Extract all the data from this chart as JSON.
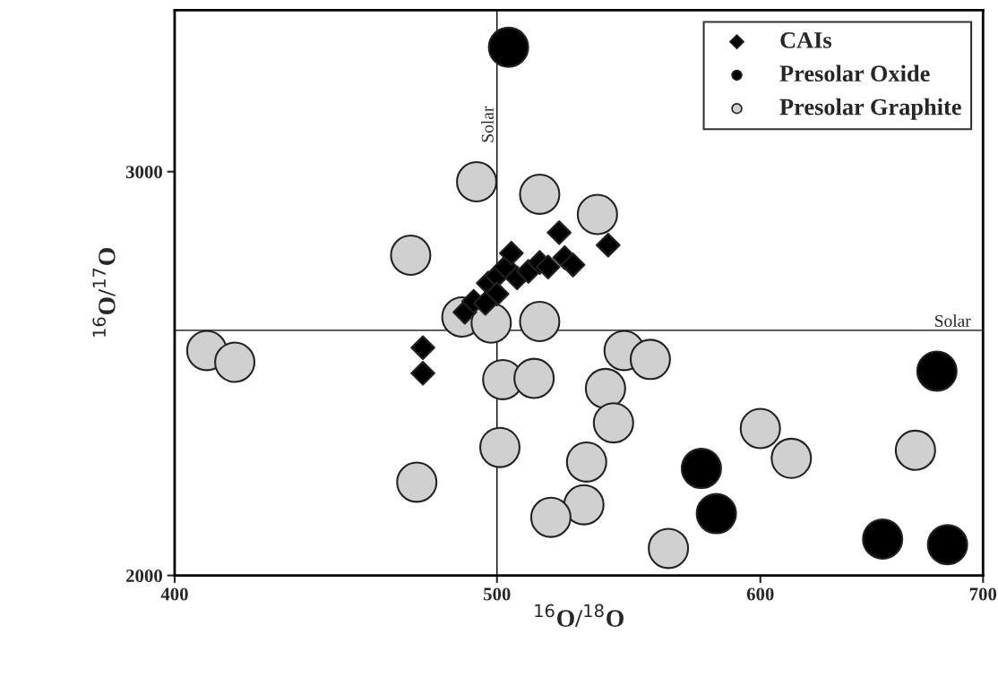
{
  "chart_data": {
    "type": "scatter",
    "xlabel": "$^{16}$O/$^{18}$O",
    "ylabel": "$^{16}$O/$^{17}$O",
    "log": "x",
    "xlim": [
      400,
      700
    ],
    "ylim": [
      2000,
      3400
    ],
    "xticks": [
      400,
      500,
      600,
      700
    ],
    "yticks": [
      2000,
      3000
    ],
    "grid": false,
    "legend": "top right",
    "ref_lines": [
      {
        "axis": "x",
        "value": 500,
        "label": "Solar"
      },
      {
        "axis": "y",
        "value": 2607,
        "label": "Solar"
      }
    ],
    "series": [
      {
        "name": "CAIs",
        "color": "#000000",
        "marker": "diamond",
        "x": [
          475,
          475,
          489,
          492,
          495,
          497,
          500,
          503,
          505,
          507,
          511,
          515,
          518,
          522,
          524,
          527,
          540,
          500,
          496
        ],
        "values": [
          2564,
          2501,
          2652,
          2679,
          null,
          2724,
          2742,
          2764,
          2798,
          2737,
          2753,
          2775,
          2764,
          2849,
          2787,
          2769,
          2818,
          2697,
          2674
        ]
      },
      {
        "name": "Presolar Oxide",
        "color": "#000000",
        "marker": "circle",
        "x": [
          504,
          678,
          576,
          582,
          653,
          683
        ],
        "values": [
          3308,
          2506,
          2265,
          2153,
          2090,
          2076
        ]
      },
      {
        "name": "Presolar Graphite",
        "color": "#d0d0d0",
        "marker": "circle",
        "x": [
          493,
          515,
          536,
          471,
          488,
          498,
          515,
          409,
          417,
          546,
          556,
          502,
          513,
          539,
          542,
          501,
          600,
          613,
          668,
          473,
          532,
          531,
          519,
          563
        ],
        "values": [
          2975,
          2944,
          2894,
          2793,
          2640,
          2625,
          2629,
          2557,
          2528,
          2557,
          2535,
          2485,
          2488,
          2463,
          2378,
          2317,
          2364,
          2290,
          2310,
          2231,
          2281,
          2175,
          2144,
          2067
        ]
      }
    ]
  }
}
